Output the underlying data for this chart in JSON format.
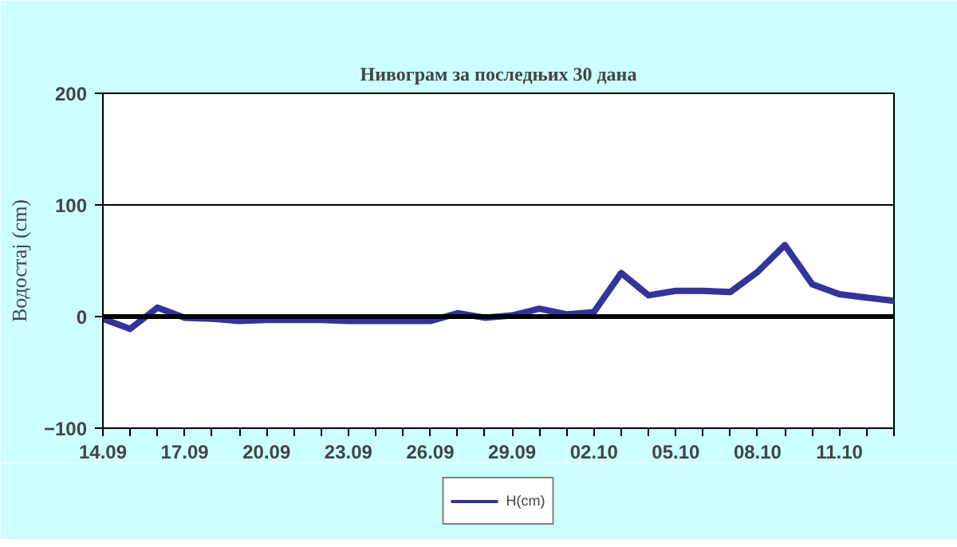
{
  "chart_data": {
    "type": "line",
    "title": "Нивограм за последњих 30 дана",
    "ylabel": "Водостај (cm)",
    "categories": [
      "14.09",
      null,
      null,
      "17.09",
      null,
      null,
      "20.09",
      null,
      null,
      "23.09",
      null,
      null,
      "26.09",
      null,
      null,
      "29.09",
      null,
      null,
      "02.10",
      null,
      null,
      "05.10",
      null,
      null,
      "08.10",
      null,
      null,
      "11.10",
      null,
      null
    ],
    "series": [
      {
        "name": "H(cm)",
        "color": "#333399",
        "values": [
          -2,
          -11,
          8,
          -1,
          -2,
          -4,
          -3,
          -3,
          -3,
          -4,
          -4,
          -4,
          -4,
          3,
          -1,
          1,
          7,
          2,
          4,
          39,
          19,
          23,
          23,
          22,
          40,
          64,
          29,
          20,
          17,
          14
        ]
      }
    ],
    "ylim": [
      -100,
      200
    ],
    "yticks": [
      -100,
      0,
      100,
      200
    ],
    "grid": "y",
    "legend": "bottom",
    "ref_lines": [
      {
        "axis": "y",
        "value": 0,
        "color": "#000000"
      }
    ]
  }
}
